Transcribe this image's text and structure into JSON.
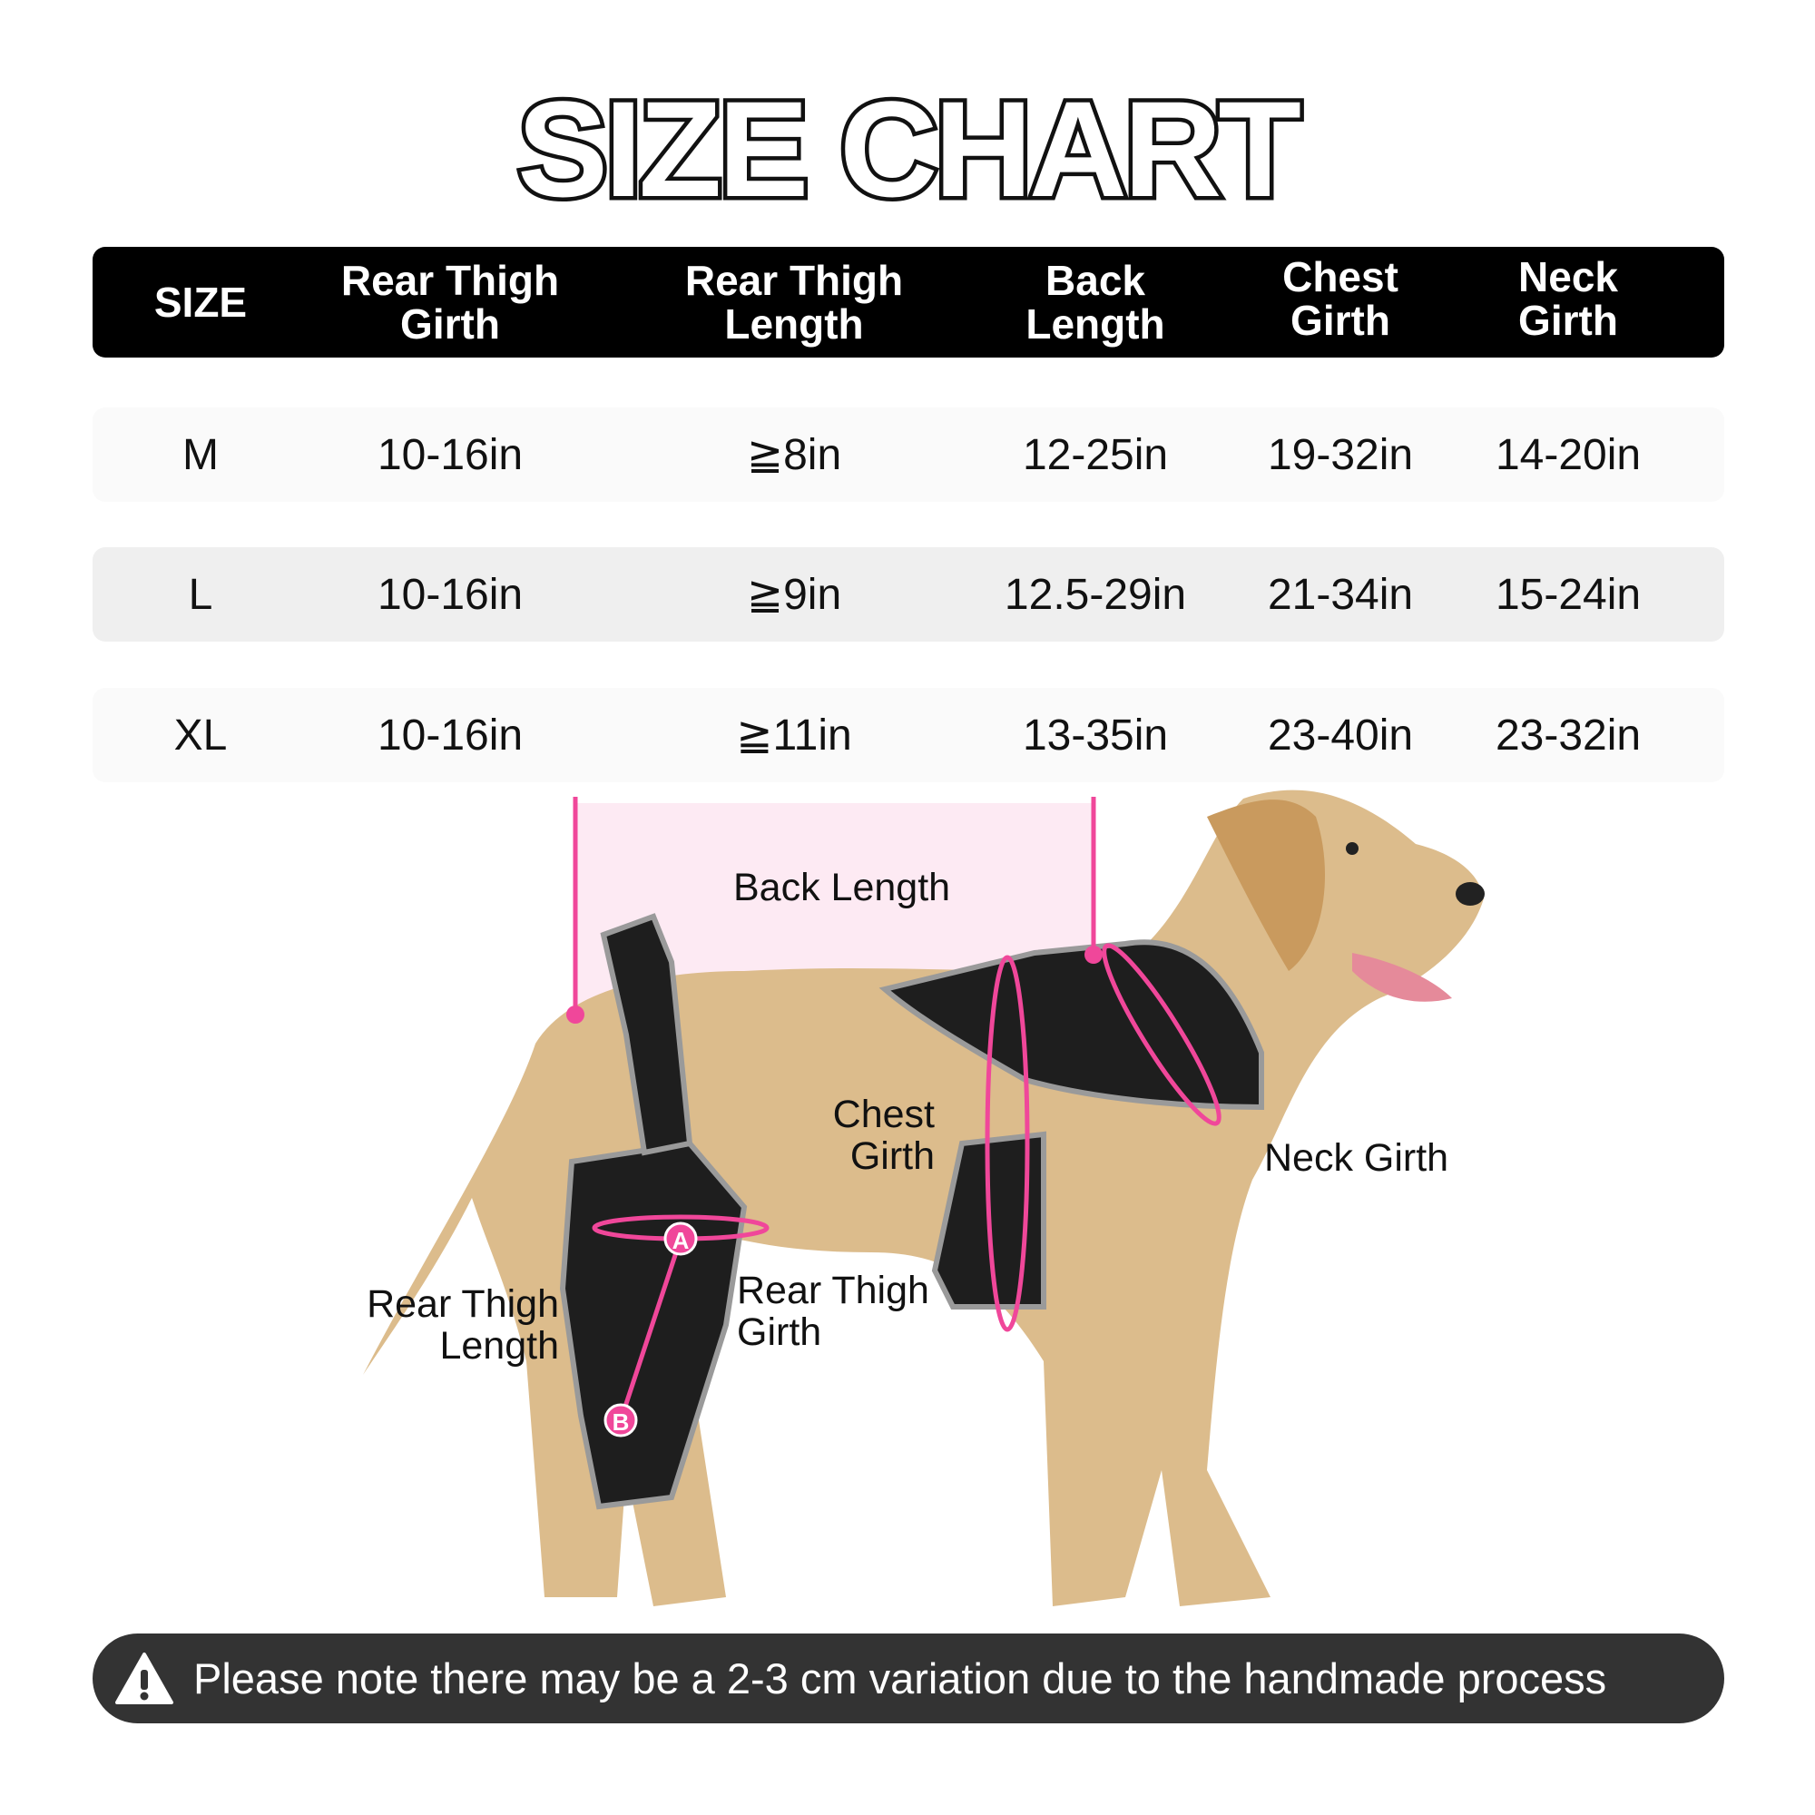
{
  "title": "SIZE CHART",
  "table": {
    "headers": [
      "SIZE",
      "Rear Thigh Girth",
      "Rear Thigh Length",
      "Back Length",
      "Chest Girth",
      "Neck Girth"
    ],
    "rows": [
      [
        "M",
        "10-16in",
        "≧8in",
        "12-25in",
        "19-32in",
        "14-20in"
      ],
      [
        "L",
        "10-16in",
        "≧9in",
        "12.5-29in",
        "21-34in",
        "15-24in"
      ],
      [
        "XL",
        "10-16in",
        "≧11in",
        "13-35in",
        "23-40in",
        "23-32in"
      ]
    ]
  },
  "diagram": {
    "labels": {
      "back_length": "Back Length",
      "chest_girth": "Chest Girth",
      "neck_girth": "Neck Girth",
      "rear_thigh_length": "Rear Thigh Length",
      "rear_thigh_girth": "Rear Thigh Girth"
    },
    "markers": [
      "A",
      "B"
    ],
    "accent_color": "#f0479a"
  },
  "note": {
    "icon": "warning-icon",
    "text": "Please note there may be a 2-3 cm variation due to the handmade process"
  }
}
